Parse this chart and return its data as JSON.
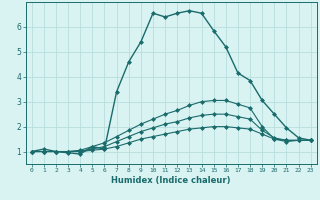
{
  "xlabel": "Humidex (Indice chaleur)",
  "bg_color": "#d9f2f2",
  "grid_color": "#b8dede",
  "line_color": "#1a6b6b",
  "xlim": [
    -0.5,
    23.5
  ],
  "ylim": [
    0.5,
    7.0
  ],
  "yticks": [
    1,
    2,
    3,
    4,
    5,
    6
  ],
  "xticks": [
    0,
    1,
    2,
    3,
    4,
    5,
    6,
    7,
    8,
    9,
    10,
    11,
    12,
    13,
    14,
    15,
    16,
    17,
    18,
    19,
    20,
    21,
    22,
    23
  ],
  "series": [
    [
      1.0,
      1.1,
      1.0,
      0.95,
      0.9,
      1.2,
      1.1,
      3.4,
      4.6,
      5.4,
      6.55,
      6.4,
      6.55,
      6.65,
      6.55,
      5.85,
      5.2,
      4.15,
      3.85,
      3.05,
      2.5,
      1.95,
      1.55,
      1.45
    ],
    [
      1.0,
      1.0,
      1.0,
      1.0,
      1.05,
      1.2,
      1.35,
      1.6,
      1.85,
      2.1,
      2.3,
      2.5,
      2.65,
      2.85,
      3.0,
      3.05,
      3.05,
      2.9,
      2.75,
      2.0,
      1.5,
      1.4,
      1.45,
      1.45
    ],
    [
      1.0,
      1.0,
      1.0,
      1.0,
      1.02,
      1.1,
      1.2,
      1.4,
      1.6,
      1.8,
      1.95,
      2.1,
      2.2,
      2.35,
      2.45,
      2.5,
      2.5,
      2.4,
      2.3,
      1.85,
      1.55,
      1.45,
      1.45,
      1.45
    ],
    [
      1.0,
      1.0,
      1.0,
      1.0,
      1.0,
      1.05,
      1.1,
      1.2,
      1.35,
      1.5,
      1.6,
      1.7,
      1.8,
      1.9,
      1.95,
      2.0,
      2.0,
      1.95,
      1.9,
      1.7,
      1.5,
      1.45,
      1.45,
      1.45
    ]
  ]
}
